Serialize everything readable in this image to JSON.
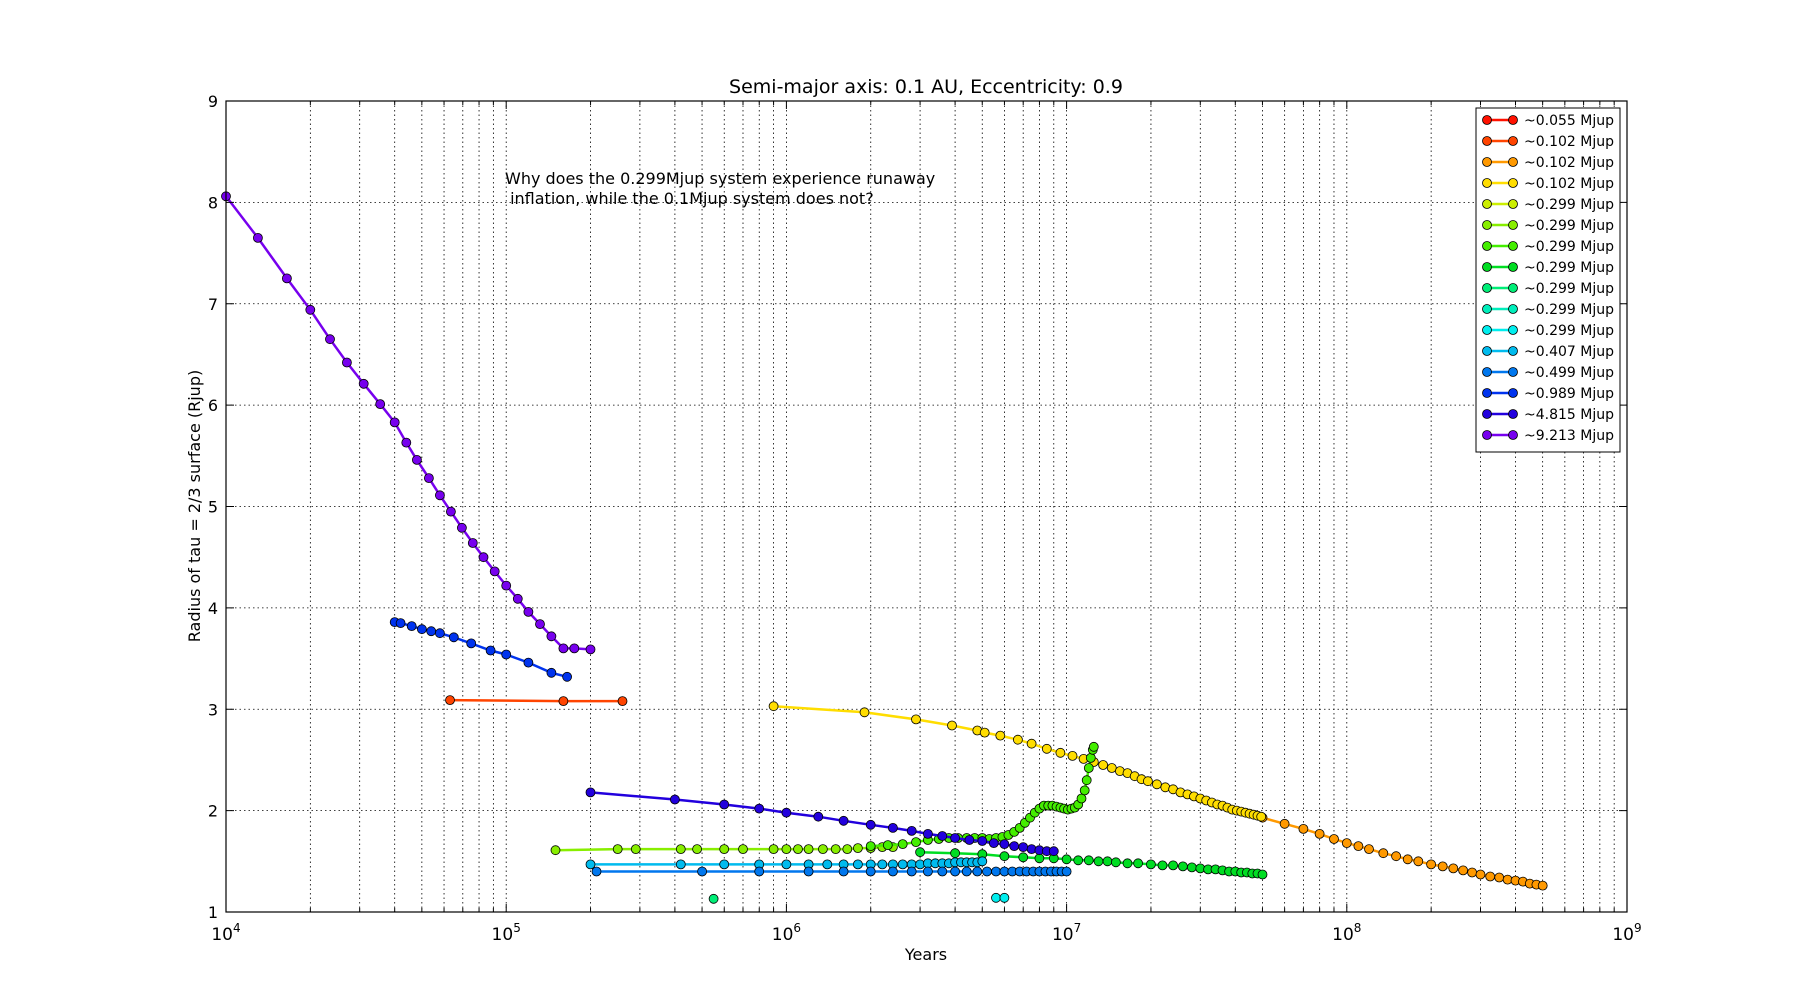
{
  "chart_data": {
    "type": "line",
    "title": "Semi-major axis: 0.1 AU, Eccentricity: 0.9",
    "xlabel": "Years",
    "ylabel": "Radius of tau = 2/3 surface (Rjup)",
    "x_scale": "log",
    "xlim": [
      10000,
      1000000000
    ],
    "ylim": [
      1,
      9
    ],
    "grid": true,
    "legend_position": "upper-right",
    "x_ticks": [
      {
        "value": 10000,
        "base": "10",
        "exp": "4"
      },
      {
        "value": 100000,
        "base": "10",
        "exp": "5"
      },
      {
        "value": 1000000,
        "base": "10",
        "exp": "6"
      },
      {
        "value": 10000000,
        "base": "10",
        "exp": "7"
      },
      {
        "value": 100000000,
        "base": "10",
        "exp": "8"
      },
      {
        "value": 1000000000,
        "base": "10",
        "exp": "9"
      }
    ],
    "y_ticks": [
      {
        "value": 1,
        "label": "1"
      },
      {
        "value": 2,
        "label": "2"
      },
      {
        "value": 3,
        "label": "3"
      },
      {
        "value": 4,
        "label": "4"
      },
      {
        "value": 5,
        "label": "5"
      },
      {
        "value": 6,
        "label": "6"
      },
      {
        "value": 7,
        "label": "7"
      },
      {
        "value": 8,
        "label": "8"
      },
      {
        "value": 9,
        "label": "9"
      }
    ],
    "annotation": [
      "Why does the 0.299Mjup system experience runaway",
      " inflation, while the 0.1Mjup system does not?"
    ],
    "series": [
      {
        "name": "~0.055 Mjup",
        "color": "#ff1100",
        "x": [],
        "y": []
      },
      {
        "name": "~0.102 Mjup",
        "color": "#ff4400",
        "x": [
          63000,
          160000,
          260000
        ],
        "y": [
          3.09,
          3.08,
          3.08
        ]
      },
      {
        "name": "~0.102 Mjup",
        "color": "#ff9900",
        "x": [
          50000000,
          60000000,
          70000000,
          80000000,
          90000000,
          100000000,
          110000000,
          120000000,
          135000000,
          150000000,
          165000000,
          180000000,
          200000000,
          220000000,
          240000000,
          260000000,
          280000000,
          300000000,
          325000000,
          350000000,
          375000000,
          400000000,
          425000000,
          450000000,
          475000000,
          500000000
        ],
        "y": [
          1.93,
          1.87,
          1.82,
          1.77,
          1.72,
          1.68,
          1.65,
          1.62,
          1.58,
          1.55,
          1.52,
          1.5,
          1.47,
          1.45,
          1.43,
          1.41,
          1.39,
          1.37,
          1.35,
          1.34,
          1.32,
          1.31,
          1.3,
          1.28,
          1.27,
          1.26
        ]
      },
      {
        "name": "~0.102 Mjup",
        "color": "#ffdd00",
        "x": [
          900000,
          1900000,
          2900000,
          3900000,
          4800000,
          5100000,
          5800000,
          6700000,
          7500000,
          8500000,
          9500000,
          10500000,
          11500000,
          12500000,
          13500000,
          14500000,
          15500000,
          16500000,
          17500000,
          18500000,
          19500000,
          21000000,
          22500000,
          24000000,
          25500000,
          27000000,
          28500000,
          30000000,
          31500000,
          33000000,
          34500000,
          36000000,
          37500000,
          39000000,
          40500000,
          42000000,
          43500000,
          45000000,
          46500000,
          48000000,
          49500000
        ],
        "y": [
          3.03,
          2.97,
          2.9,
          2.84,
          2.79,
          2.77,
          2.74,
          2.7,
          2.66,
          2.61,
          2.57,
          2.54,
          2.51,
          2.48,
          2.45,
          2.42,
          2.39,
          2.37,
          2.34,
          2.31,
          2.29,
          2.26,
          2.23,
          2.21,
          2.18,
          2.16,
          2.14,
          2.12,
          2.1,
          2.08,
          2.06,
          2.05,
          2.03,
          2.01,
          2.0,
          1.99,
          1.98,
          1.97,
          1.96,
          1.95,
          1.94
        ]
      },
      {
        "name": "~0.299 Mjup",
        "color": "#ccee00",
        "x": [],
        "y": []
      },
      {
        "name": "~0.299 Mjup",
        "color": "#88ee00",
        "x": [
          150000,
          250000,
          290000,
          420000,
          480000,
          600000,
          700000,
          900000,
          1000000,
          1100000,
          1200000,
          1350000,
          1500000,
          1650000,
          1800000,
          2000000,
          2200000,
          2400000
        ],
        "y": [
          1.61,
          1.62,
          1.62,
          1.62,
          1.62,
          1.62,
          1.62,
          1.62,
          1.62,
          1.62,
          1.62,
          1.62,
          1.62,
          1.62,
          1.63,
          1.63,
          1.64,
          1.64
        ]
      },
      {
        "name": "~0.299 Mjup",
        "color": "#44ee00",
        "x": [
          2000000,
          2300000,
          2600000,
          2900000,
          3200000,
          3500000,
          3800000,
          4100000,
          4400000,
          4700000,
          5000000,
          5300000,
          5600000,
          5900000,
          6200000,
          6500000,
          6800000,
          7100000,
          7400000,
          7700000,
          8000000,
          8300000,
          8600000,
          8900000,
          9200000,
          9500000,
          9800000,
          10100000,
          10400000,
          10700000,
          11000000,
          11300000,
          11600000,
          11800000,
          12000000,
          12200000,
          12400000,
          12500000
        ],
        "y": [
          1.65,
          1.66,
          1.67,
          1.69,
          1.71,
          1.72,
          1.73,
          1.73,
          1.73,
          1.73,
          1.73,
          1.72,
          1.73,
          1.74,
          1.76,
          1.79,
          1.83,
          1.88,
          1.93,
          1.98,
          2.02,
          2.05,
          2.05,
          2.05,
          2.04,
          2.03,
          2.02,
          2.01,
          2.02,
          2.03,
          2.06,
          2.12,
          2.2,
          2.3,
          2.42,
          2.52,
          2.6,
          2.63
        ]
      },
      {
        "name": "~0.299 Mjup",
        "color": "#00dd22",
        "x": [
          3000000,
          4000000,
          5000000,
          6000000,
          7000000,
          8000000,
          9000000,
          10000000,
          11000000,
          12000000,
          13000000,
          14000000,
          15000000,
          16500000,
          18000000,
          20000000,
          22000000,
          24000000,
          26000000,
          28000000,
          30000000,
          32000000,
          34000000,
          36000000,
          38000000,
          40000000,
          42000000,
          44000000,
          46000000,
          48000000,
          50000000
        ],
        "y": [
          1.59,
          1.58,
          1.57,
          1.55,
          1.54,
          1.53,
          1.53,
          1.52,
          1.51,
          1.51,
          1.5,
          1.5,
          1.49,
          1.48,
          1.48,
          1.47,
          1.46,
          1.46,
          1.45,
          1.44,
          1.43,
          1.42,
          1.42,
          1.41,
          1.4,
          1.4,
          1.39,
          1.39,
          1.38,
          1.38,
          1.37
        ]
      },
      {
        "name": "~0.299 Mjup",
        "color": "#00ee77",
        "x": [
          550000
        ],
        "y": [
          1.13
        ]
      },
      {
        "name": "~0.299 Mjup",
        "color": "#00eebb",
        "x": [],
        "y": []
      },
      {
        "name": "~0.299 Mjup",
        "color": "#00eeee",
        "x": [
          5600000,
          6000000
        ],
        "y": [
          1.14,
          1.14
        ]
      },
      {
        "name": "~0.407 Mjup",
        "color": "#00bbee",
        "x": [
          200000,
          420000,
          600000,
          800000,
          1000000,
          1200000,
          1400000,
          1600000,
          1800000,
          2000000,
          2200000,
          2400000,
          2600000,
          2800000,
          3000000,
          3200000,
          3400000,
          3600000,
          3800000,
          4000000,
          4200000,
          4400000,
          4600000,
          4800000,
          5000000
        ],
        "y": [
          1.47,
          1.47,
          1.47,
          1.47,
          1.47,
          1.47,
          1.47,
          1.47,
          1.47,
          1.47,
          1.47,
          1.47,
          1.47,
          1.47,
          1.47,
          1.48,
          1.48,
          1.48,
          1.48,
          1.49,
          1.49,
          1.49,
          1.49,
          1.49,
          1.5
        ]
      },
      {
        "name": "~0.499 Mjup",
        "color": "#0077ee",
        "x": [
          210000,
          500000,
          800000,
          1200000,
          1600000,
          2000000,
          2400000,
          2800000,
          3200000,
          3600000,
          4000000,
          4400000,
          4800000,
          5200000,
          5600000,
          6000000,
          6400000,
          6800000,
          7200000,
          7600000,
          8000000,
          8400000,
          8800000,
          9200000,
          9600000,
          10000000
        ],
        "y": [
          1.4,
          1.4,
          1.4,
          1.4,
          1.4,
          1.4,
          1.4,
          1.4,
          1.4,
          1.4,
          1.4,
          1.4,
          1.4,
          1.4,
          1.4,
          1.4,
          1.4,
          1.4,
          1.4,
          1.4,
          1.4,
          1.4,
          1.4,
          1.4,
          1.4,
          1.4
        ]
      },
      {
        "name": "~0.989 Mjup",
        "color": "#0033ee",
        "x": [
          40000,
          42000,
          46000,
          50000,
          54000,
          58000,
          65000,
          75000,
          88000,
          100000,
          120000,
          145000,
          165000
        ],
        "y": [
          3.86,
          3.85,
          3.82,
          3.79,
          3.77,
          3.75,
          3.71,
          3.65,
          3.58,
          3.54,
          3.46,
          3.36,
          3.32
        ]
      },
      {
        "name": "~4.815 Mjup",
        "color": "#2200dd",
        "x": [
          200000,
          400000,
          600000,
          800000,
          1000000,
          1300000,
          1600000,
          2000000,
          2400000,
          2800000,
          3200000,
          3600000,
          4000000,
          4500000,
          5000000,
          5500000,
          6000000,
          6500000,
          7000000,
          7500000,
          8000000,
          8500000,
          9000000
        ],
        "y": [
          2.18,
          2.11,
          2.06,
          2.02,
          1.98,
          1.94,
          1.9,
          1.86,
          1.83,
          1.8,
          1.77,
          1.75,
          1.73,
          1.71,
          1.7,
          1.68,
          1.67,
          1.65,
          1.64,
          1.62,
          1.61,
          1.6,
          1.6
        ]
      },
      {
        "name": "~9.213 Mjup",
        "color": "#7700ee",
        "x": [
          10000,
          13000,
          16500,
          20000,
          23500,
          27000,
          31000,
          35500,
          40000,
          44000,
          48000,
          53000,
          58000,
          63500,
          69500,
          76000,
          83000,
          91000,
          100000,
          110000,
          120000,
          132000,
          145000,
          160000,
          175000,
          200000
        ],
        "y": [
          8.06,
          7.65,
          7.25,
          6.94,
          6.65,
          6.42,
          6.21,
          6.01,
          5.83,
          5.63,
          5.46,
          5.28,
          5.11,
          4.95,
          4.79,
          4.64,
          4.5,
          4.36,
          4.22,
          4.09,
          3.96,
          3.84,
          3.72,
          3.6,
          3.6,
          3.59
        ]
      }
    ]
  }
}
